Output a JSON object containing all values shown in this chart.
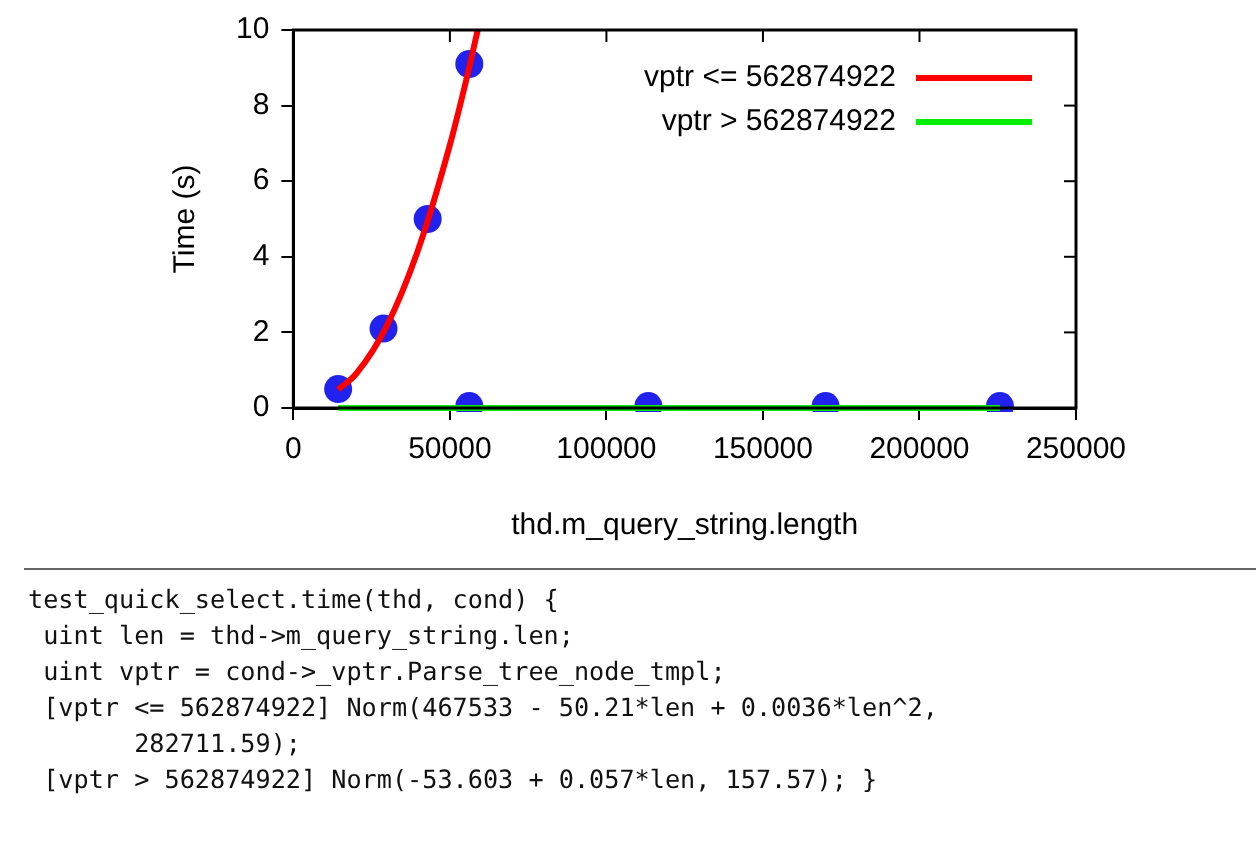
{
  "chart_data": {
    "type": "scatter",
    "xlabel": "thd.m_query_string.length",
    "ylabel": "Time (s)",
    "xlim": [
      0,
      250000
    ],
    "xticks": [
      0,
      50000,
      100000,
      150000,
      200000,
      250000
    ],
    "ylim": [
      0,
      10
    ],
    "yticks": [
      0,
      2,
      4,
      6,
      8,
      10
    ],
    "grid": false,
    "legend": "top right",
    "series": [
      {
        "color": "#2222ee",
        "marker": "circle",
        "x": [
          14300,
          28800,
          42900,
          56200,
          56200,
          113400,
          170000,
          225700
        ],
        "values": [
          0.5,
          2.1,
          5.0,
          9.1,
          0.05,
          0.05,
          0.05,
          0.05
        ]
      },
      {
        "type": "line",
        "name": "vptr <= 562874922",
        "color": "#ff0000",
        "marker": "none",
        "x": [
          14300,
          20000,
          30000,
          40000,
          50000,
          55000,
          58900
        ],
        "values": [
          0.49,
          0.9,
          2.2,
          4.22,
          6.96,
          8.6,
          10
        ]
      },
      {
        "type": "line",
        "name": "vptr > 562874922",
        "color": "#00ee00",
        "marker": "none",
        "x": [
          14300,
          225700
        ],
        "values": [
          0,
          0
        ]
      }
    ],
    "annotations": [
      "test_quick_select.time(thd, cond) {",
      " uint len = thd->m_query_string.len;",
      " uint vptr = cond->_vptr.Parse_tree_node_tmpl;",
      " [vptr <= 562874922] Norm(467533 - 50.21*len + 0.0036*len^2,",
      "       282711.59);",
      " [vptr > 562874922] Norm(-53.603 + 0.057*len, 157.57); }"
    ]
  }
}
